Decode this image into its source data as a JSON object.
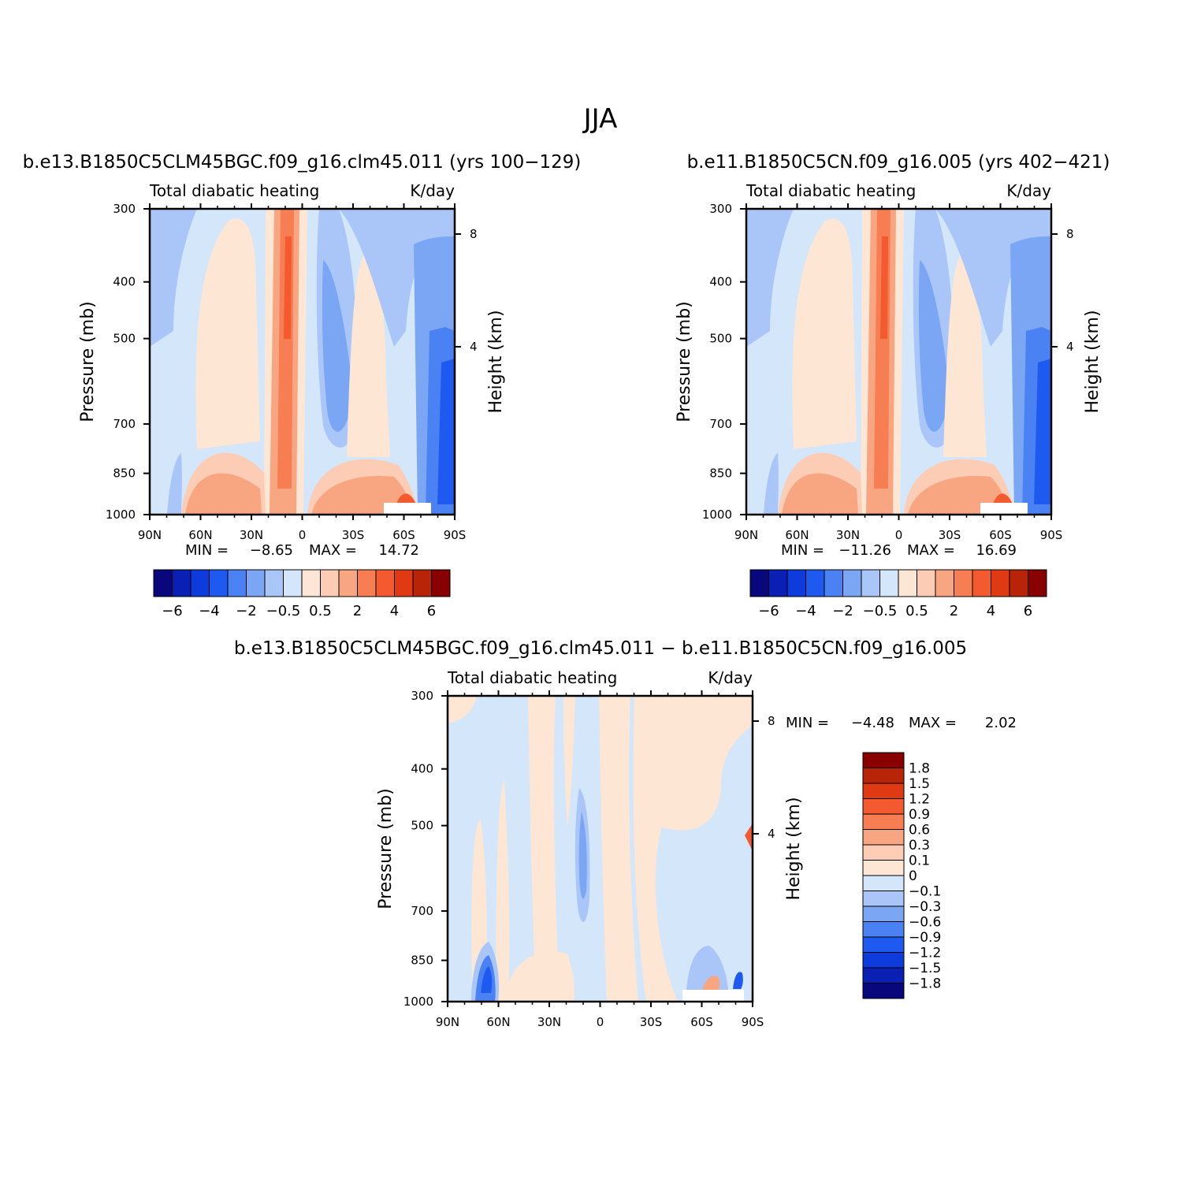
{
  "figure_title": "JJA",
  "colors": {
    "main_scale": [
      "#08087c",
      "#0a20b4",
      "#0e3cdc",
      "#1e5af0",
      "#4a82f4",
      "#7aa6f4",
      "#aac6f8",
      "#d4e6fa",
      "#fde6d4",
      "#fccdb4",
      "#f8a682",
      "#f67e52",
      "#f45a30",
      "#e03a14",
      "#b82408",
      "#880000"
    ],
    "diff_scale": [
      "#08087c",
      "#0a20b4",
      "#0e3cdc",
      "#1e5af0",
      "#4a82f4",
      "#7aa6f4",
      "#aac6f8",
      "#d4e6fa",
      "#fde6d4",
      "#fccdb4",
      "#f8a682",
      "#f67e52",
      "#f45a30",
      "#e03a14",
      "#b82408",
      "#880000"
    ]
  },
  "chart_data": [
    {
      "type": "heatmap",
      "id": "panel1",
      "title": "b.e13.B1850C5CLM45BGC.f09_g16.clm45.011 (yrs 100−129)",
      "left_label": "Total diabatic heating",
      "right_label": "K/day",
      "ylabel": "Pressure (mb)",
      "ylabel_right": "Height (km)",
      "x_ticks": [
        "90N",
        "60N",
        "30N",
        "0",
        "30S",
        "60S",
        "90S"
      ],
      "y_ticks": [
        "300",
        "400",
        "500",
        "700",
        "850",
        "1000"
      ],
      "y_right_ticks": [
        "8",
        "4"
      ],
      "min_label": "MIN =",
      "min_value": "−8.65",
      "max_label": "MAX =",
      "max_value": "14.72",
      "colorbar_labels": [
        "−6",
        "−4",
        "−2",
        "−0.5",
        "0.5",
        "2",
        "4",
        "6"
      ],
      "ylim": [
        1000,
        300
      ],
      "xlim": [
        90,
        -90
      ]
    },
    {
      "type": "heatmap",
      "id": "panel2",
      "title": "b.e11.B1850C5CN.f09_g16.005 (yrs 402−421)",
      "left_label": "Total diabatic heating",
      "right_label": "K/day",
      "ylabel": "Pressure (mb)",
      "ylabel_right": "Height (km)",
      "x_ticks": [
        "90N",
        "60N",
        "30N",
        "0",
        "30S",
        "60S",
        "90S"
      ],
      "y_ticks": [
        "300",
        "400",
        "500",
        "700",
        "850",
        "1000"
      ],
      "y_right_ticks": [
        "8",
        "4"
      ],
      "min_label": "MIN =",
      "min_value": "−11.26",
      "max_label": "MAX =",
      "max_value": "16.69",
      "colorbar_labels": [
        "−6",
        "−4",
        "−2",
        "−0.5",
        "0.5",
        "2",
        "4",
        "6"
      ],
      "ylim": [
        1000,
        300
      ],
      "xlim": [
        90,
        -90
      ]
    },
    {
      "type": "heatmap",
      "id": "panel3",
      "title": "b.e13.B1850C5CLM45BGC.f09_g16.clm45.011 − b.e11.B1850C5CN.f09_g16.005",
      "left_label": "Total diabatic heating",
      "right_label": "K/day",
      "ylabel": "Pressure (mb)",
      "ylabel_right": "Height (km)",
      "x_ticks": [
        "90N",
        "60N",
        "30N",
        "0",
        "30S",
        "60S",
        "90S"
      ],
      "y_ticks": [
        "300",
        "400",
        "500",
        "700",
        "850",
        "1000"
      ],
      "y_right_ticks": [
        "8",
        "4"
      ],
      "min_label": "MIN =",
      "min_value": "−4.48",
      "max_label": "MAX =",
      "max_value": "2.02",
      "colorbar_labels": [
        "1.8",
        "1.5",
        "1.2",
        "0.9",
        "0.6",
        "0.3",
        "0.1",
        "0",
        "−0.1",
        "−0.3",
        "−0.6",
        "−0.9",
        "−1.2",
        "−1.5",
        "−1.8"
      ],
      "ylim": [
        1000,
        300
      ],
      "xlim": [
        90,
        -90
      ]
    }
  ]
}
